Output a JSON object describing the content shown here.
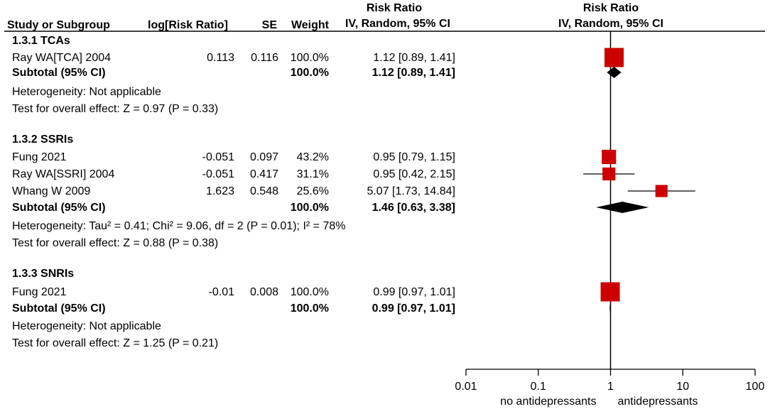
{
  "header": {
    "study": "Study or Subgroup",
    "logrr": "log[Risk Ratio]",
    "se": "SE",
    "weight": "Weight",
    "rr_title": "Risk Ratio",
    "rr_method": "IV, Random, 95% CI",
    "plot_title": "Risk Ratio",
    "plot_method": "IV, Random, 95% CI"
  },
  "groups": [
    {
      "title": "1.3.1 TCAs",
      "studies": [
        {
          "name": "Ray WA[TCA] 2004",
          "logrr": "0.113",
          "se": "0.116",
          "weight": "100.0%",
          "ci_text": "1.12 [0.89, 1.41]"
        }
      ],
      "subtotal": {
        "label": "Subtotal (95% CI)",
        "weight": "100.0%",
        "ci_text": "1.12 [0.89, 1.41]"
      },
      "heterogeneity": "Heterogeneity: Not applicable",
      "overall": "Test for overall effect: Z = 0.97 (P = 0.33)"
    },
    {
      "title": "1.3.2 SSRIs",
      "studies": [
        {
          "name": "Fung 2021",
          "logrr": "-0.051",
          "se": "0.097",
          "weight": "43.2%",
          "ci_text": "0.95 [0.79, 1.15]"
        },
        {
          "name": "Ray WA[SSRI] 2004",
          "logrr": "-0.051",
          "se": "0.417",
          "weight": "31.1%",
          "ci_text": "0.95 [0.42, 2.15]"
        },
        {
          "name": "Whang W 2009",
          "logrr": "1.623",
          "se": "0.548",
          "weight": "25.6%",
          "ci_text": "5.07 [1.73, 14.84]"
        }
      ],
      "subtotal": {
        "label": "Subtotal (95% CI)",
        "weight": "100.0%",
        "ci_text": "1.46 [0.63, 3.38]"
      },
      "heterogeneity": "Heterogeneity: Tau² = 0.41; Chi² = 9.06, df = 2 (P = 0.01); I² = 78%",
      "overall": "Test for overall effect: Z = 0.88 (P = 0.38)"
    },
    {
      "title": "1.3.3 SNRIs",
      "studies": [
        {
          "name": "Fung 2021",
          "logrr": "-0.01",
          "se": "0.008",
          "weight": "100.0%",
          "ci_text": "0.99 [0.97, 1.01]"
        }
      ],
      "subtotal": {
        "label": "Subtotal (95% CI)",
        "weight": "100.0%",
        "ci_text": "0.99 [0.97, 1.01]"
      },
      "heterogeneity": "Heterogeneity: Not applicable",
      "overall": "Test for overall effect: Z = 1.25 (P = 0.21)"
    }
  ],
  "chart_data": {
    "type": "forest",
    "title": "Risk Ratio",
    "subtitle": "IV, Random, 95% CI",
    "x_scale": "log",
    "xlim": [
      0.01,
      100
    ],
    "x_ticks": [
      "0.01",
      "0.1",
      "1",
      "10",
      "100"
    ],
    "x_tick_values": [
      0.01,
      0.1,
      1,
      10,
      100
    ],
    "null_line": 1,
    "left_label": "no antidepressants",
    "right_label": "antidepressants",
    "marker_color": "#cc0000",
    "diamond_color": "#000000",
    "groups": [
      {
        "name": "1.3.1 TCAs",
        "studies": [
          {
            "name": "Ray WA[TCA] 2004",
            "rr": 1.12,
            "lo": 0.89,
            "hi": 1.41,
            "weight": 100.0
          }
        ],
        "subtotal": {
          "rr": 1.12,
          "lo": 0.89,
          "hi": 1.41
        }
      },
      {
        "name": "1.3.2 SSRIs",
        "studies": [
          {
            "name": "Fung 2021",
            "rr": 0.95,
            "lo": 0.79,
            "hi": 1.15,
            "weight": 43.2
          },
          {
            "name": "Ray WA[SSRI] 2004",
            "rr": 0.95,
            "lo": 0.42,
            "hi": 2.15,
            "weight": 31.1
          },
          {
            "name": "Whang W 2009",
            "rr": 5.07,
            "lo": 1.73,
            "hi": 14.84,
            "weight": 25.6
          }
        ],
        "subtotal": {
          "rr": 1.46,
          "lo": 0.63,
          "hi": 3.38
        }
      },
      {
        "name": "1.3.3 SNRIs",
        "studies": [
          {
            "name": "Fung 2021",
            "rr": 0.99,
            "lo": 0.97,
            "hi": 1.01,
            "weight": 100.0
          }
        ],
        "subtotal": {
          "rr": 0.99,
          "lo": 0.97,
          "hi": 1.01
        }
      }
    ]
  }
}
